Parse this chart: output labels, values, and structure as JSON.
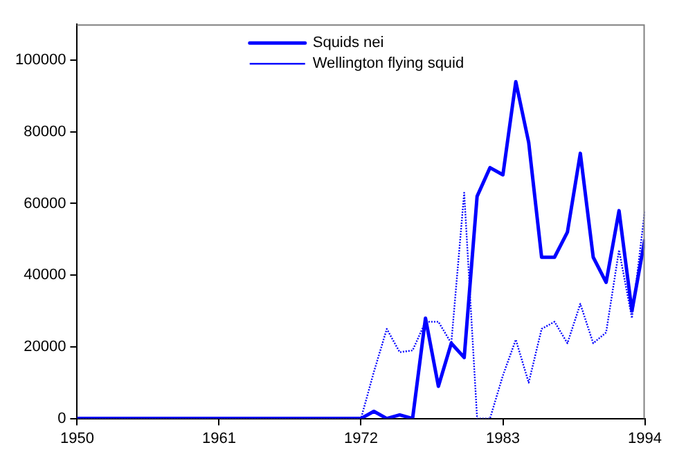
{
  "chart_data": {
    "type": "line",
    "x": [
      1950,
      1951,
      1952,
      1953,
      1954,
      1955,
      1956,
      1957,
      1958,
      1959,
      1960,
      1961,
      1962,
      1963,
      1964,
      1965,
      1966,
      1967,
      1968,
      1969,
      1970,
      1971,
      1972,
      1973,
      1974,
      1975,
      1976,
      1977,
      1978,
      1979,
      1980,
      1981,
      1982,
      1983,
      1984,
      1985,
      1986,
      1987,
      1988,
      1989,
      1990,
      1991,
      1992,
      1993,
      1994
    ],
    "xlim": [
      1950,
      1994
    ],
    "xticks": [
      1950,
      1961,
      1972,
      1983,
      1994
    ],
    "ylim": [
      0,
      110000
    ],
    "yticks": [
      0,
      20000,
      40000,
      60000,
      80000,
      100000
    ],
    "legend": "top",
    "grid": false,
    "marker": "none",
    "series": [
      {
        "name": "Squids nei",
        "color": "#0000ff",
        "line_style": "solid",
        "values": [
          0,
          0,
          0,
          0,
          0,
          0,
          0,
          0,
          0,
          0,
          0,
          0,
          0,
          0,
          0,
          0,
          0,
          0,
          0,
          0,
          0,
          0,
          0,
          2000,
          0,
          1000,
          0,
          28000,
          9000,
          21000,
          17000,
          62000,
          70000,
          68000,
          94000,
          77000,
          45000,
          45000,
          52000,
          74000,
          45000,
          38000,
          58000,
          30000,
          50000
        ]
      },
      {
        "name": "Wellington flying squid",
        "color": "#0000ff",
        "line_style": "dotted",
        "values": [
          0,
          0,
          0,
          0,
          0,
          0,
          0,
          0,
          0,
          0,
          0,
          0,
          0,
          0,
          0,
          0,
          0,
          0,
          0,
          0,
          0,
          0,
          0,
          13000,
          25000,
          18500,
          19000,
          27000,
          27000,
          21000,
          63000,
          0,
          0,
          12000,
          22000,
          10000,
          25000,
          27000,
          21000,
          32000,
          21000,
          24000,
          47000,
          28000,
          58000
        ]
      }
    ]
  }
}
